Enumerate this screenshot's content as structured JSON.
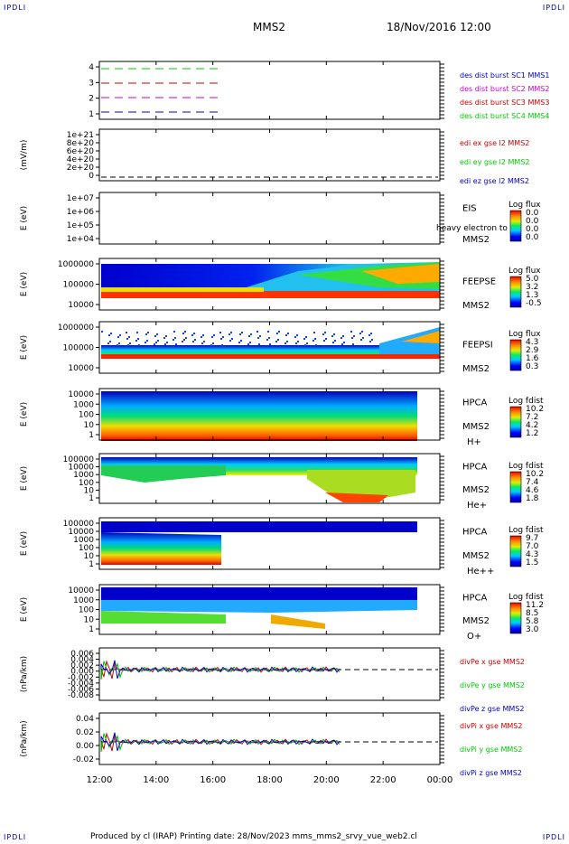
{
  "corners": {
    "tl": "IPDLI",
    "tr": "IPDLI",
    "bl": "IPDLI",
    "br": "IPDLI"
  },
  "header": {
    "mission": "MMS2",
    "datetime": "18/Nov/2016 12:00"
  },
  "footer": {
    "text": "Produced by cl (IRAP)   Printing date: 28/Nov/2023   mms_mms2_srvy_vue_web2.cl"
  },
  "colors": {
    "c1": "#0000cc",
    "c2": "#cc00cc",
    "c3": "#cc0000",
    "c4": "#00cc00"
  },
  "chart_data": {
    "type": "multi-panel time series",
    "xticks": [
      "12:00",
      "14:00",
      "16:00",
      "18:00",
      "20:00",
      "22:00",
      "00:00"
    ],
    "panels": [
      {
        "id": "p1",
        "yticks": [
          "4",
          "3",
          "2",
          "1"
        ],
        "legend": [
          "des dist burst SC1 MMS1",
          "des dist burst SC2 MMS2",
          "des dist burst SC3 MMS3",
          "des dist burst SC4 MMS4"
        ]
      },
      {
        "id": "p2",
        "ylabel": "(mV/m)",
        "yticks": [
          "1e+21",
          "8e+20",
          "6e+20",
          "4e+20",
          "2e+20",
          "0"
        ],
        "legend": [
          "edi ex gse l2 MMS2",
          "edi ey gse l2 MMS2",
          "edi ez gse l2 MMS2"
        ]
      },
      {
        "id": "p3",
        "ylabel": "E (eV)",
        "yticks": [
          "1e+07",
          "1e+06",
          "1e+05",
          "1e+04"
        ],
        "instrument": "EIS",
        "sat": "MMS2",
        "overlay": "heavy electron to",
        "cbar_title": "Log flux",
        "cbar": [
          "0.0",
          "0.0",
          "0.0",
          "0.0"
        ]
      },
      {
        "id": "p4",
        "ylabel": "E (eV)",
        "yticks": [
          "1000000",
          "100000",
          "10000"
        ],
        "instrument": "FEEPSE",
        "sat": "MMS2",
        "cbar_title": "Log flux",
        "cbar": [
          "5.0",
          "3.2",
          "1.3",
          "-0.5"
        ]
      },
      {
        "id": "p5",
        "ylabel": "E (eV)",
        "yticks": [
          "1000000",
          "100000",
          "10000"
        ],
        "instrument": "FEEPSI",
        "sat": "MMS2",
        "cbar_title": "Log flux",
        "cbar": [
          "4.3",
          "2.9",
          "1.6",
          "0.3"
        ]
      },
      {
        "id": "p6",
        "ylabel": "E (eV)",
        "yticks": [
          "10000",
          "1000",
          "100",
          "10",
          "1"
        ],
        "instrument": "HPCA",
        "sat": "MMS2",
        "species": "H+",
        "cbar_title": "Log fdist",
        "cbar": [
          "10.2",
          "7.2",
          "4.2",
          "1.2"
        ]
      },
      {
        "id": "p7",
        "ylabel": "E (eV)",
        "yticks": [
          "100000",
          "10000",
          "1000",
          "100",
          "10",
          "1"
        ],
        "instrument": "HPCA",
        "sat": "MMS2",
        "species": "He+",
        "cbar_title": "Log fdist",
        "cbar": [
          "10.2",
          "7.4",
          "4.6",
          "1.8"
        ]
      },
      {
        "id": "p8",
        "ylabel": "E (eV)",
        "yticks": [
          "100000",
          "10000",
          "1000",
          "100",
          "10",
          "1"
        ],
        "instrument": "HPCA",
        "sat": "MMS2",
        "species": "He++",
        "cbar_title": "Log fdist",
        "cbar": [
          "9.7",
          "7.0",
          "4.3",
          "1.5"
        ]
      },
      {
        "id": "p9",
        "ylabel": "E (eV)",
        "yticks": [
          "10000",
          "1000",
          "100",
          "10",
          "1"
        ],
        "instrument": "HPCA",
        "sat": "MMS2",
        "species": "O+",
        "cbar_title": "Log fdist",
        "cbar": [
          "11.2",
          "8.5",
          "5.8",
          "3.0"
        ]
      },
      {
        "id": "p10",
        "ylabel": "(nPa/km)",
        "yticks": [
          "0.006",
          "0.004",
          "0.002",
          "0.000",
          "-0.002",
          "-0.004",
          "-0.006",
          "-0.008"
        ],
        "legend": [
          "divPe x gse MMS2",
          "divPe y gse MMS2",
          "divPe z gse MMS2"
        ]
      },
      {
        "id": "p11",
        "ylabel": "(nPa/km)",
        "yticks": [
          "0.04",
          "0.02",
          "0.00",
          "-0.02"
        ],
        "legend": [
          "divPi x gse MMS2",
          "divPi y gse MMS2",
          "divPi z gse MMS2"
        ]
      }
    ]
  }
}
